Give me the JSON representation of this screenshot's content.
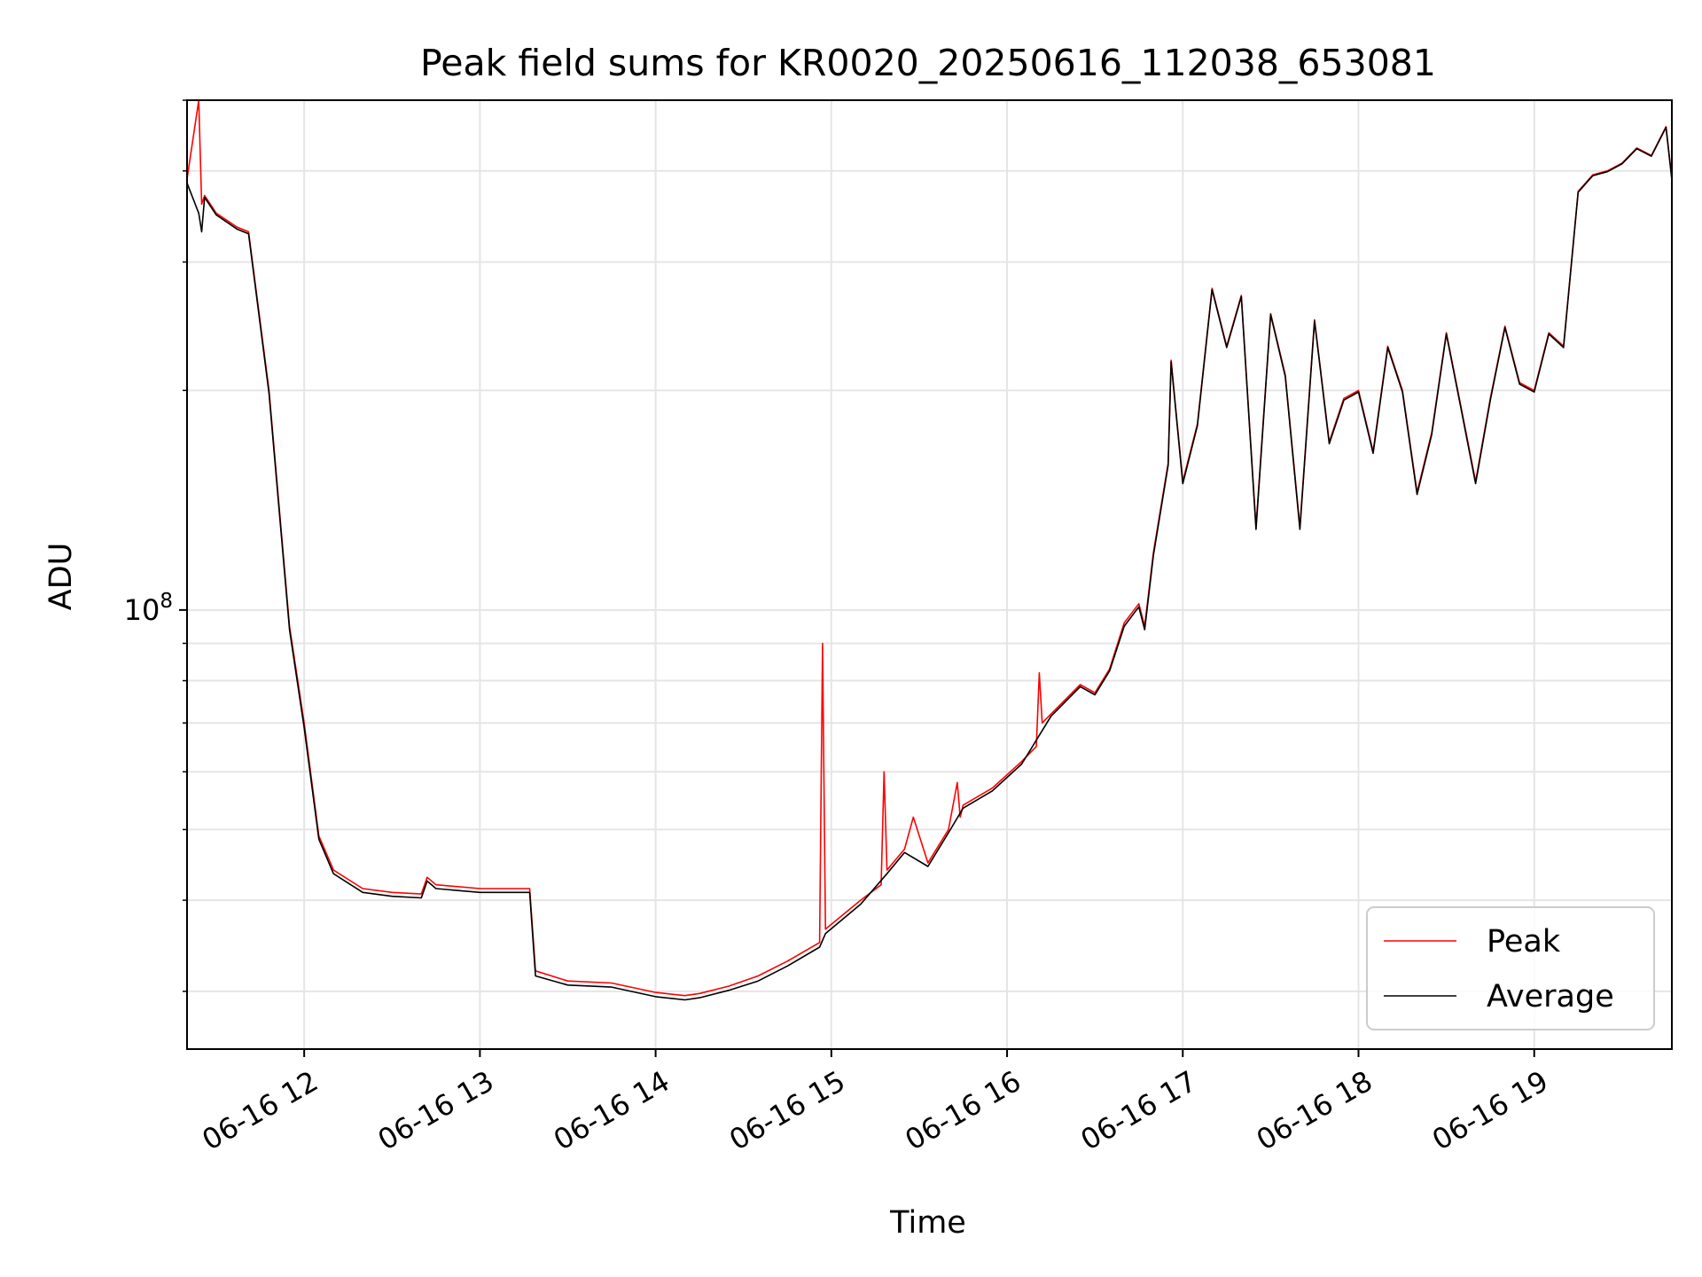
{
  "chart_data": {
    "type": "line",
    "title": "Peak field sums for KR0020_20250616_112038_653081",
    "xlabel": "Time",
    "ylabel": "ADU",
    "x_scale": "time",
    "y_scale": "log",
    "x_ticks": [
      "06-16 12",
      "06-16 13",
      "06-16 14",
      "06-16 15",
      "06-16 16",
      "06-16 17",
      "06-16 18",
      "06-16 19"
    ],
    "y_ticks": [
      {
        "value": 100000000,
        "base": "10",
        "exponent": "8"
      }
    ],
    "xlim": [
      "2025-06-16 11:20",
      "2025-06-16 19:47"
    ],
    "ylim": [
      25000000,
      500000000
    ],
    "grid": true,
    "legend_position": "lower right",
    "series": [
      {
        "name": "Peak",
        "color": "#ff0000",
        "x": [
          "2025-06-16 11:20",
          "2025-06-16 11:24",
          "2025-06-16 11:25",
          "2025-06-16 11:26",
          "2025-06-16 11:30",
          "2025-06-16 11:37",
          "2025-06-16 11:41",
          "2025-06-16 11:48",
          "2025-06-16 11:55",
          "2025-06-16 12:00",
          "2025-06-16 12:05",
          "2025-06-16 12:10",
          "2025-06-16 12:20",
          "2025-06-16 12:30",
          "2025-06-16 12:40",
          "2025-06-16 12:42",
          "2025-06-16 12:45",
          "2025-06-16 13:00",
          "2025-06-16 13:10",
          "2025-06-16 13:17",
          "2025-06-16 13:19",
          "2025-06-16 13:30",
          "2025-06-16 13:45",
          "2025-06-16 14:00",
          "2025-06-16 14:10",
          "2025-06-16 14:15",
          "2025-06-16 14:25",
          "2025-06-16 14:35",
          "2025-06-16 14:45",
          "2025-06-16 14:56",
          "2025-06-16 14:57",
          "2025-06-16 14:58",
          "2025-06-16 15:10",
          "2025-06-16 15:17",
          "2025-06-16 15:18",
          "2025-06-16 15:19",
          "2025-06-16 15:25",
          "2025-06-16 15:28",
          "2025-06-16 15:33",
          "2025-06-16 15:40",
          "2025-06-16 15:43",
          "2025-06-16 15:44",
          "2025-06-16 15:45",
          "2025-06-16 15:55",
          "2025-06-16 16:05",
          "2025-06-16 16:10",
          "2025-06-16 16:11",
          "2025-06-16 16:12",
          "2025-06-16 16:15",
          "2025-06-16 16:25",
          "2025-06-16 16:30",
          "2025-06-16 16:35",
          "2025-06-16 16:40",
          "2025-06-16 16:45",
          "2025-06-16 16:47",
          "2025-06-16 16:50",
          "2025-06-16 16:55",
          "2025-06-16 16:56",
          "2025-06-16 17:00",
          "2025-06-16 17:05",
          "2025-06-16 17:10",
          "2025-06-16 17:15",
          "2025-06-16 17:20",
          "2025-06-16 17:25",
          "2025-06-16 17:30",
          "2025-06-16 17:35",
          "2025-06-16 17:40",
          "2025-06-16 17:45",
          "2025-06-16 17:50",
          "2025-06-16 17:55",
          "2025-06-16 18:00",
          "2025-06-16 18:05",
          "2025-06-16 18:10",
          "2025-06-16 18:15",
          "2025-06-16 18:20",
          "2025-06-16 18:25",
          "2025-06-16 18:30",
          "2025-06-16 18:35",
          "2025-06-16 18:40",
          "2025-06-16 18:45",
          "2025-06-16 18:50",
          "2025-06-16 18:55",
          "2025-06-16 19:00",
          "2025-06-16 19:05",
          "2025-06-16 19:10",
          "2025-06-16 19:15",
          "2025-06-16 19:20",
          "2025-06-16 19:25",
          "2025-06-16 19:30",
          "2025-06-16 19:35",
          "2025-06-16 19:40",
          "2025-06-16 19:45",
          "2025-06-16 19:47"
        ],
        "y": [
          390000000,
          500000000,
          360000000,
          370000000,
          350000000,
          335000000,
          330000000,
          200000000,
          95000000,
          70000000,
          49000000,
          44000000,
          41500000,
          41000000,
          40800000,
          43000000,
          42000000,
          41500000,
          41500000,
          41500000,
          32000000,
          31000000,
          30800000,
          29900000,
          29600000,
          29800000,
          30500000,
          31500000,
          33000000,
          35000000,
          90000000,
          36500000,
          40000000,
          42000000,
          60000000,
          44000000,
          47000000,
          52000000,
          45000000,
          50000000,
          58000000,
          52000000,
          54000000,
          57000000,
          62000000,
          65000000,
          82000000,
          70000000,
          72000000,
          79000000,
          77000000,
          83000000,
          96000000,
          102000000,
          95000000,
          120000000,
          159000000,
          220000000,
          150000000,
          180000000,
          276000000,
          230000000,
          270000000,
          130000000,
          255000000,
          210000000,
          130000000,
          250000000,
          170000000,
          195000000,
          200000000,
          165000000,
          230000000,
          200000000,
          145000000,
          175000000,
          240000000,
          190000000,
          150000000,
          195000000,
          245000000,
          205000000,
          200000000,
          240000000,
          230000000,
          375000000,
          395000000,
          400000000,
          410000000,
          430000000,
          420000000,
          460000000,
          390000000
        ]
      },
      {
        "name": "Average",
        "color": "#000000",
        "x": [
          "2025-06-16 11:20",
          "2025-06-16 11:24",
          "2025-06-16 11:25",
          "2025-06-16 11:26",
          "2025-06-16 11:30",
          "2025-06-16 11:37",
          "2025-06-16 11:41",
          "2025-06-16 11:48",
          "2025-06-16 11:55",
          "2025-06-16 12:00",
          "2025-06-16 12:05",
          "2025-06-16 12:10",
          "2025-06-16 12:20",
          "2025-06-16 12:30",
          "2025-06-16 12:40",
          "2025-06-16 12:42",
          "2025-06-16 12:45",
          "2025-06-16 13:00",
          "2025-06-16 13:10",
          "2025-06-16 13:17",
          "2025-06-16 13:19",
          "2025-06-16 13:30",
          "2025-06-16 13:45",
          "2025-06-16 14:00",
          "2025-06-16 14:10",
          "2025-06-16 14:15",
          "2025-06-16 14:25",
          "2025-06-16 14:35",
          "2025-06-16 14:45",
          "2025-06-16 14:56",
          "2025-06-16 14:58",
          "2025-06-16 15:10",
          "2025-06-16 15:19",
          "2025-06-16 15:25",
          "2025-06-16 15:33",
          "2025-06-16 15:40",
          "2025-06-16 15:45",
          "2025-06-16 15:55",
          "2025-06-16 16:05",
          "2025-06-16 16:15",
          "2025-06-16 16:25",
          "2025-06-16 16:30",
          "2025-06-16 16:35",
          "2025-06-16 16:40",
          "2025-06-16 16:45",
          "2025-06-16 16:47",
          "2025-06-16 16:50",
          "2025-06-16 16:55",
          "2025-06-16 16:56",
          "2025-06-16 17:00",
          "2025-06-16 17:05",
          "2025-06-16 17:10",
          "2025-06-16 17:15",
          "2025-06-16 17:20",
          "2025-06-16 17:25",
          "2025-06-16 17:30",
          "2025-06-16 17:35",
          "2025-06-16 17:40",
          "2025-06-16 17:45",
          "2025-06-16 17:50",
          "2025-06-16 17:55",
          "2025-06-16 18:00",
          "2025-06-16 18:05",
          "2025-06-16 18:10",
          "2025-06-16 18:15",
          "2025-06-16 18:20",
          "2025-06-16 18:25",
          "2025-06-16 18:30",
          "2025-06-16 18:35",
          "2025-06-16 18:40",
          "2025-06-16 18:45",
          "2025-06-16 18:50",
          "2025-06-16 18:55",
          "2025-06-16 19:00",
          "2025-06-16 19:05",
          "2025-06-16 19:10",
          "2025-06-16 19:15",
          "2025-06-16 19:20",
          "2025-06-16 19:25",
          "2025-06-16 19:30",
          "2025-06-16 19:35",
          "2025-06-16 19:40",
          "2025-06-16 19:45",
          "2025-06-16 19:47"
        ],
        "y": [
          385000000,
          350000000,
          330000000,
          368000000,
          348000000,
          333000000,
          328000000,
          198000000,
          94000000,
          69000000,
          48500000,
          43500000,
          41000000,
          40500000,
          40300000,
          42500000,
          41500000,
          41000000,
          41000000,
          41000000,
          31500000,
          30600000,
          30400000,
          29500000,
          29200000,
          29400000,
          30100000,
          31000000,
          32500000,
          34500000,
          36000000,
          39500000,
          43500000,
          46500000,
          44500000,
          49500000,
          53500000,
          56500000,
          61500000,
          71500000,
          78500000,
          76500000,
          82500000,
          95000000,
          101000000,
          94000000,
          119000000,
          158000000,
          219000000,
          149000000,
          179000000,
          275000000,
          229000000,
          269000000,
          129000000,
          254000000,
          209000000,
          129000000,
          249000000,
          169000000,
          194000000,
          199000000,
          164000000,
          229000000,
          199000000,
          144000000,
          174000000,
          239000000,
          189000000,
          149000000,
          194000000,
          244000000,
          204000000,
          199000000,
          239000000,
          229000000,
          374000000,
          394000000,
          399000000,
          409000000,
          429000000,
          419000000,
          459000000,
          389000000
        ]
      }
    ]
  }
}
